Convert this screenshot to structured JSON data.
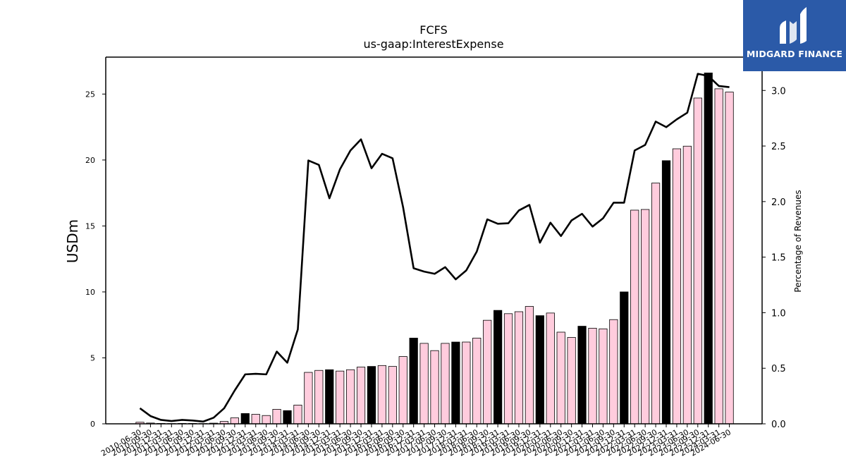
{
  "brand": {
    "name": "MIDGARD FINANCE",
    "color": "#2b5aa8"
  },
  "chart_data": {
    "type": "bar",
    "title": "FCFS",
    "subtitle": "us-gaap:InterestExpense",
    "ylabel": "USDm",
    "y2label": "Percentage of Revenues",
    "ylim": [
      0,
      27.8
    ],
    "y2lim": [
      0,
      3.3
    ],
    "yticks": [
      "0",
      "5",
      "10",
      "15",
      "20",
      "25"
    ],
    "y2ticks": [
      "0.0",
      "0.5",
      "1.0",
      "1.5",
      "2.0",
      "2.5",
      "3.0"
    ],
    "grid": false,
    "colors": {
      "quarter_bar": "#ffccdd",
      "annual_bar": "#000000",
      "line": "#000000"
    },
    "categories": [
      "2010-06-30",
      "2010-09-30",
      "2010-12-31",
      "2011-03-31",
      "2011-06-30",
      "2011-09-30",
      "2011-12-31",
      "2012-03-31",
      "2012-06-30",
      "2012-09-30",
      "2012-12-31",
      "2013-03-31",
      "2013-06-30",
      "2013-09-30",
      "2013-12-31",
      "2014-03-31",
      "2014-06-30",
      "2014-09-30",
      "2014-12-31",
      "2015-03-31",
      "2015-06-30",
      "2015-09-30",
      "2015-12-31",
      "2016-03-31",
      "2016-06-30",
      "2016-09-30",
      "2016-12-31",
      "2017-03-31",
      "2017-06-30",
      "2017-09-30",
      "2017-12-31",
      "2018-03-31",
      "2018-06-30",
      "2018-09-30",
      "2018-12-31",
      "2019-03-31",
      "2019-06-30",
      "2019-09-30",
      "2019-12-31",
      "2020-03-31",
      "2020-06-30",
      "2020-09-30",
      "2020-12-31",
      "2021-03-31",
      "2021-06-30",
      "2021-09-30",
      "2021-12-31",
      "2022-03-31",
      "2022-06-30",
      "2022-09-30",
      "2022-12-31",
      "2023-03-31",
      "2023-06-30",
      "2023-09-30",
      "2023-12-31",
      "2024-03-31",
      "2024-06-30"
    ],
    "series": [
      {
        "kind": "bar",
        "axis": "left",
        "values": [
          0.12,
          0.06,
          0.03,
          0.02,
          0.03,
          0.03,
          0.02,
          0.05,
          0.18,
          0.45,
          0.78,
          0.72,
          0.63,
          1.1,
          1.0,
          1.42,
          3.9,
          4.05,
          4.1,
          4.0,
          4.1,
          4.3,
          4.35,
          4.42,
          4.35,
          5.1,
          6.5,
          6.1,
          5.55,
          6.1,
          6.2,
          6.2,
          6.5,
          7.85,
          8.6,
          8.35,
          8.5,
          8.9,
          8.2,
          8.4,
          6.95,
          6.55,
          7.4,
          7.25,
          7.2,
          7.9,
          10.0,
          16.2,
          16.25,
          18.25,
          19.95,
          20.85,
          21.05,
          24.7,
          26.6,
          25.4,
          25.15
        ],
        "annual": [
          false,
          false,
          false,
          false,
          false,
          false,
          false,
          false,
          false,
          false,
          true,
          false,
          false,
          false,
          true,
          false,
          false,
          false,
          true,
          false,
          false,
          false,
          true,
          false,
          false,
          false,
          true,
          false,
          false,
          false,
          true,
          false,
          false,
          false,
          true,
          false,
          false,
          false,
          true,
          false,
          false,
          false,
          true,
          false,
          false,
          false,
          true,
          false,
          false,
          false,
          true,
          false,
          false,
          false,
          true,
          false,
          false
        ]
      },
      {
        "kind": "line",
        "axis": "right",
        "values": [
          0.14,
          0.07,
          0.035,
          0.025,
          0.035,
          0.03,
          0.02,
          0.055,
          0.14,
          0.3,
          0.445,
          0.45,
          0.445,
          0.65,
          0.55,
          0.85,
          2.37,
          2.33,
          2.03,
          2.29,
          2.46,
          2.56,
          2.3,
          2.43,
          2.39,
          1.95,
          1.4,
          1.37,
          1.35,
          1.41,
          1.3,
          1.38,
          1.55,
          1.84,
          1.8,
          1.805,
          1.92,
          1.97,
          1.63,
          1.81,
          1.69,
          1.83,
          1.89,
          1.775,
          1.85,
          1.99,
          1.99,
          2.46,
          2.51,
          2.72,
          2.67,
          2.74,
          2.8,
          3.15,
          3.13,
          3.04,
          3.03
        ]
      }
    ]
  }
}
